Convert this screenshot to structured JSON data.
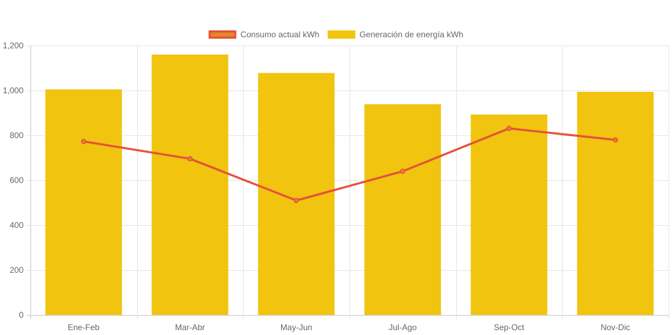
{
  "chart_data": {
    "type": "bar",
    "categories": [
      "Ene-Feb",
      "Mar-Abr",
      "May-Jun",
      "Jul-Ago",
      "Sep-Oct",
      "Nov-Dic"
    ],
    "series": [
      {
        "name": "Consumo actual kWh",
        "type": "line",
        "values": [
          773,
          696,
          510,
          640,
          831,
          780
        ],
        "color": "#e4513a",
        "legend_fill": "#e8832a"
      },
      {
        "name": "Generación de energía kWh",
        "type": "bar",
        "values": [
          1005,
          1160,
          1078,
          939,
          893,
          994
        ],
        "color": "#f1c40f"
      }
    ],
    "ylim": [
      0,
      1200
    ],
    "yticks": [
      0,
      200,
      400,
      600,
      800,
      1000,
      1200
    ],
    "ytick_labels": [
      "0",
      "200",
      "400",
      "600",
      "800",
      "1,000",
      "1,200"
    ],
    "xlabel": "",
    "ylabel": "",
    "title": "",
    "grid": true,
    "legend_position": "top-center"
  }
}
